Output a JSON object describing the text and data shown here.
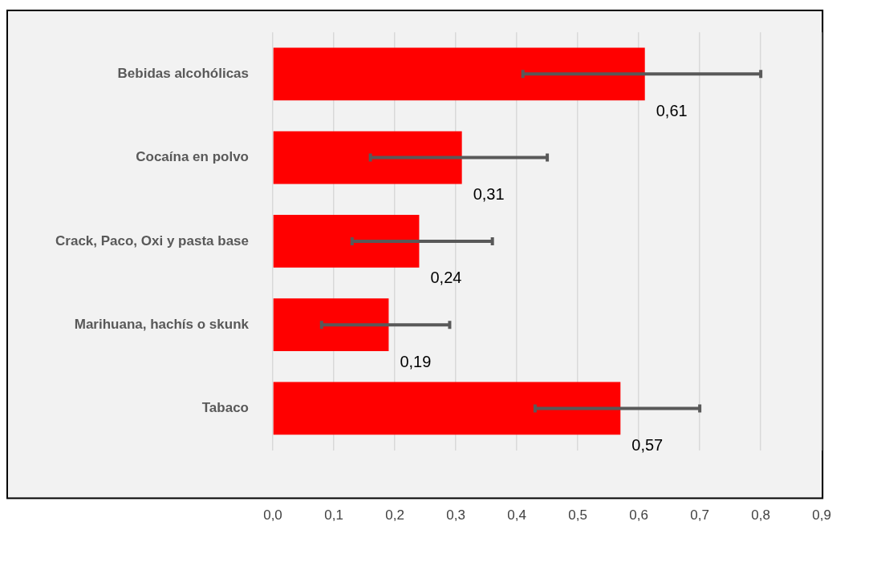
{
  "chart_data": {
    "type": "bar",
    "orientation": "horizontal",
    "categories": [
      "Bebidas alcohólicas",
      "Cocaína en polvo",
      "Crack, Paco, Oxi y pasta base",
      "Marihuana, hachís o skunk",
      "Tabaco"
    ],
    "values": [
      0.61,
      0.31,
      0.24,
      0.19,
      0.57
    ],
    "value_labels": [
      "0,61",
      "0,31",
      "0,24",
      "0,19",
      "0,57"
    ],
    "errors": [
      [
        0.41,
        0.8
      ],
      [
        0.16,
        0.45
      ],
      [
        0.13,
        0.36
      ],
      [
        0.08,
        0.29
      ],
      [
        0.43,
        0.7
      ]
    ],
    "color": "#ff0000",
    "xlim": [
      0,
      0.9
    ],
    "xticks": [
      {
        "value": 0,
        "label": "0,0"
      },
      {
        "value": 0.1,
        "label": "0,1"
      },
      {
        "value": 0.2,
        "label": "0,2"
      },
      {
        "value": 0.3,
        "label": "0,3"
      },
      {
        "value": 0.4,
        "label": "0,4"
      },
      {
        "value": 0.5,
        "label": "0,5"
      },
      {
        "value": 0.6,
        "label": "0,6"
      },
      {
        "value": 0.7,
        "label": "0,7"
      },
      {
        "value": 0.8,
        "label": "0,8"
      },
      {
        "value": 0.9,
        "label": "0,9"
      }
    ],
    "grid": "x",
    "legend": false
  }
}
